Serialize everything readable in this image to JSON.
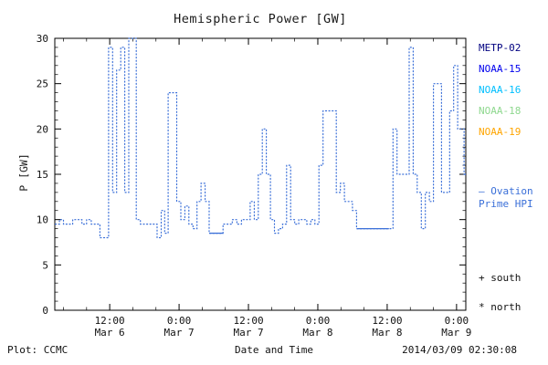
{
  "header": {
    "title": "Hemispheric Power [GW]"
  },
  "legend": {
    "satellites": [
      {
        "label": "METP-02",
        "color": "#000080"
      },
      {
        "label": "NOAA-15",
        "color": "#0000ee"
      },
      {
        "label": "NOAA-16",
        "color": "#00bfff"
      },
      {
        "label": "NOAA-18",
        "color": "#8fd88f"
      },
      {
        "label": "NOAA-19",
        "color": "#ffa500"
      }
    ],
    "ovation_line1": "— Ovation",
    "ovation_line2": "Prime HPI",
    "ovation_color": "#3a6fd8",
    "south_label": "+ south",
    "north_label": "* north"
  },
  "footer": {
    "plot_credit": "Plot: CCMC",
    "timestamp": "2014/03/09 02:30:08"
  },
  "chart_data": {
    "type": "line",
    "title": "Hemispheric Power [GW]",
    "xlabel": "Date and Time",
    "ylabel": "P [GW]",
    "ylim": [
      0,
      30
    ],
    "yticks": [
      0,
      5,
      10,
      15,
      20,
      25,
      30
    ],
    "x_unit": "hours since 2014-03-06 00:00 UT",
    "xlim": [
      2.5,
      73.6
    ],
    "xticks": [
      {
        "t": 12,
        "time": "12:00",
        "date": "Mar 6"
      },
      {
        "t": 24,
        "time": "0:00",
        "date": "Mar 7"
      },
      {
        "t": 36,
        "time": "12:00",
        "date": "Mar 7"
      },
      {
        "t": 48,
        "time": "0:00",
        "date": "Mar 8"
      },
      {
        "t": 60,
        "time": "12:00",
        "date": "Mar 8"
      },
      {
        "t": 72,
        "time": "0:00",
        "date": "Mar 9"
      }
    ],
    "line": {
      "color": "#3a6fd8",
      "style": "dotted",
      "mode": "step"
    },
    "series": [
      {
        "name": "Ovation Prime HPI",
        "points": [
          [
            2.6,
            9.5
          ],
          [
            3.3,
            10
          ],
          [
            4.0,
            9.5
          ],
          [
            4.8,
            9.5
          ],
          [
            5.6,
            10
          ],
          [
            6.4,
            10
          ],
          [
            7.2,
            9.5
          ],
          [
            8.0,
            10
          ],
          [
            8.8,
            9.5
          ],
          [
            9.6,
            9.5
          ],
          [
            10.3,
            8
          ],
          [
            11.0,
            8
          ],
          [
            11.8,
            29
          ],
          [
            12.5,
            13
          ],
          [
            13.2,
            26.5
          ],
          [
            13.9,
            29
          ],
          [
            14.6,
            13
          ],
          [
            15.3,
            30
          ],
          [
            16.0,
            30
          ],
          [
            16.6,
            10
          ],
          [
            17.3,
            9.5
          ],
          [
            18.0,
            9.5
          ],
          [
            18.8,
            9.5
          ],
          [
            19.5,
            9.5
          ],
          [
            20.2,
            8
          ],
          [
            20.9,
            11
          ],
          [
            21.5,
            8.5
          ],
          [
            22.1,
            24
          ],
          [
            22.9,
            24
          ],
          [
            23.6,
            12
          ],
          [
            24.3,
            10
          ],
          [
            25.0,
            11.5
          ],
          [
            25.7,
            9.5
          ],
          [
            26.4,
            9
          ],
          [
            27.1,
            12
          ],
          [
            27.8,
            14
          ],
          [
            28.5,
            12
          ],
          [
            29.2,
            8.5
          ],
          [
            30.0,
            8.5
          ],
          [
            30.8,
            8.5
          ],
          [
            31.6,
            9.5
          ],
          [
            32.4,
            9.5
          ],
          [
            33.2,
            10
          ],
          [
            34.0,
            9.5
          ],
          [
            34.8,
            10
          ],
          [
            35.6,
            10
          ],
          [
            36.3,
            12
          ],
          [
            37.0,
            10
          ],
          [
            37.7,
            15
          ],
          [
            38.4,
            20
          ],
          [
            39.1,
            15
          ],
          [
            39.8,
            10
          ],
          [
            40.5,
            8.5
          ],
          [
            41.2,
            9
          ],
          [
            41.9,
            9.5
          ],
          [
            42.6,
            16
          ],
          [
            43.3,
            10
          ],
          [
            44.0,
            9.5
          ],
          [
            44.7,
            10
          ],
          [
            45.4,
            10
          ],
          [
            46.1,
            9.5
          ],
          [
            46.8,
            10
          ],
          [
            47.5,
            9.5
          ],
          [
            48.2,
            16
          ],
          [
            48.9,
            22
          ],
          [
            49.7,
            22
          ],
          [
            50.5,
            22
          ],
          [
            51.2,
            13
          ],
          [
            51.9,
            14
          ],
          [
            52.6,
            12
          ],
          [
            53.3,
            12
          ],
          [
            54.0,
            11
          ],
          [
            54.7,
            9
          ],
          [
            55.5,
            9
          ],
          [
            56.3,
            9
          ],
          [
            57.1,
            9
          ],
          [
            57.9,
            9
          ],
          [
            58.7,
            9
          ],
          [
            59.5,
            9
          ],
          [
            60.3,
            9
          ],
          [
            61.0,
            20
          ],
          [
            61.7,
            15
          ],
          [
            62.4,
            15
          ],
          [
            63.1,
            15
          ],
          [
            63.8,
            29
          ],
          [
            64.5,
            15
          ],
          [
            65.2,
            13
          ],
          [
            65.9,
            9
          ],
          [
            66.6,
            13
          ],
          [
            67.3,
            12
          ],
          [
            68.0,
            25
          ],
          [
            68.7,
            25
          ],
          [
            69.4,
            13
          ],
          [
            70.1,
            13
          ],
          [
            70.8,
            22
          ],
          [
            71.5,
            27
          ],
          [
            72.2,
            20
          ],
          [
            72.9,
            20
          ],
          [
            73.3,
            15
          ]
        ]
      }
    ],
    "solid_segments": [
      {
        "t1": 29.2,
        "t2": 31.6,
        "value": 8.5
      },
      {
        "t1": 54.7,
        "t2": 60.3,
        "value": 9
      },
      {
        "t1": 73.3,
        "t2": 73.6,
        "value": 15
      }
    ]
  }
}
